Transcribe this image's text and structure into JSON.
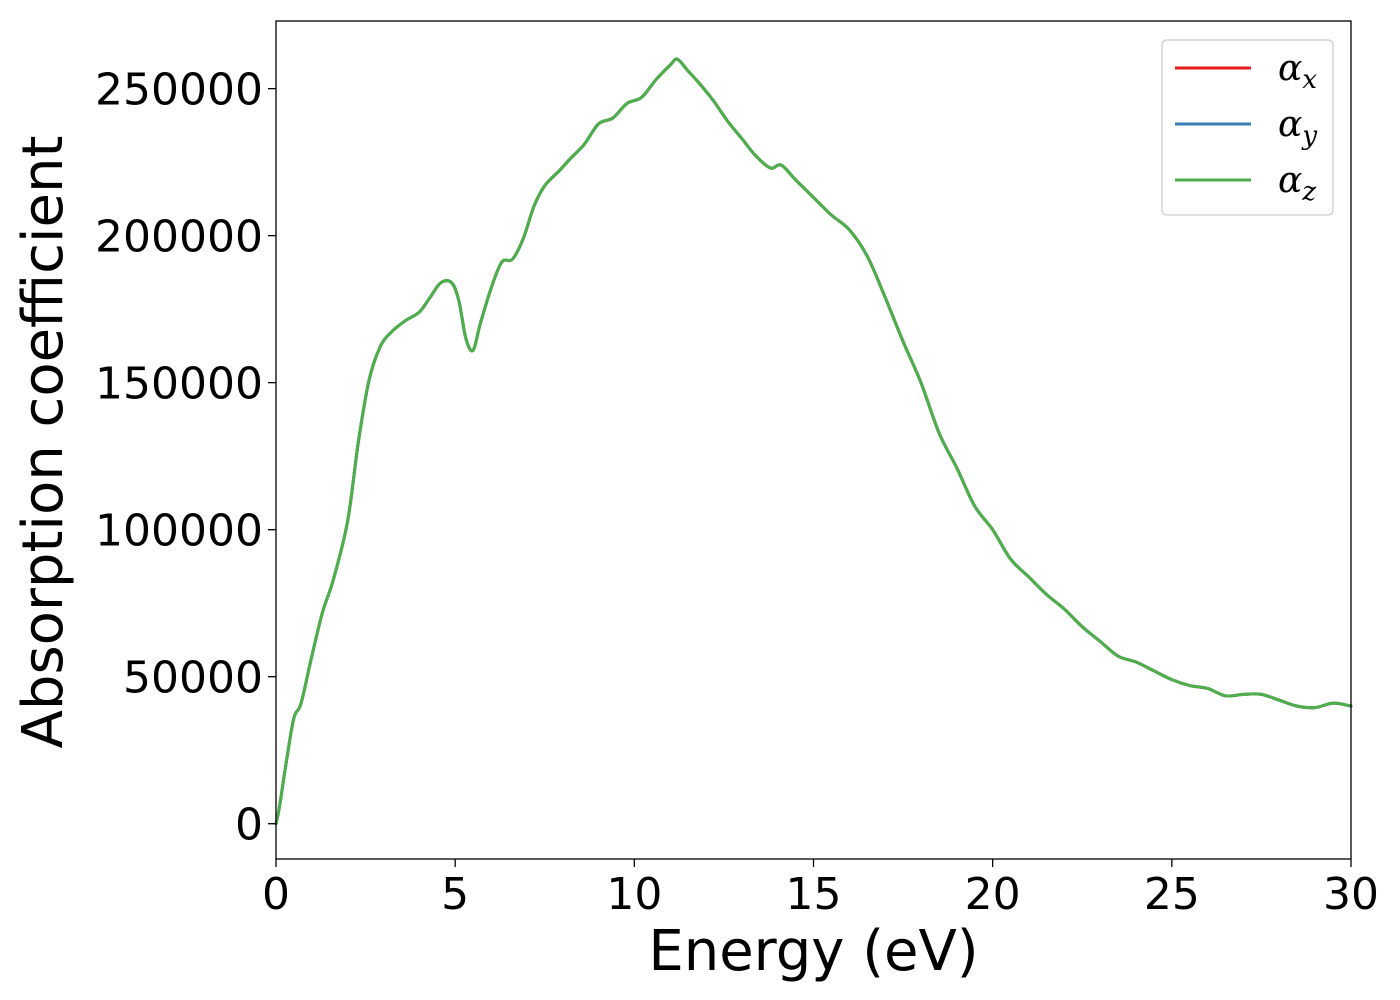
{
  "chart_data": {
    "type": "line",
    "xlabel": "Energy (eV)",
    "ylabel": "Absorption coefficient",
    "xlim": [
      0,
      30
    ],
    "ylim": [
      -12000,
      273000
    ],
    "xticks": [
      0,
      5,
      10,
      15,
      20,
      25,
      30
    ],
    "yticks": [
      0,
      50000,
      100000,
      150000,
      200000,
      250000
    ],
    "grid": false,
    "legend_position": "top-right",
    "x": [
      0,
      0.1,
      0.3,
      0.5,
      0.7,
      1.0,
      1.3,
      1.6,
      2.0,
      2.3,
      2.6,
      2.9,
      3.2,
      3.6,
      4.0,
      4.3,
      4.6,
      4.9,
      5.1,
      5.3,
      5.5,
      5.7,
      6.0,
      6.3,
      6.6,
      6.9,
      7.2,
      7.5,
      7.9,
      8.2,
      8.6,
      9.0,
      9.4,
      9.8,
      10.2,
      10.6,
      11.0,
      11.2,
      11.5,
      11.8,
      12.2,
      12.6,
      13.0,
      13.4,
      13.8,
      14.1,
      14.5,
      15.0,
      15.5,
      16.0,
      16.5,
      17.0,
      17.5,
      18.0,
      18.5,
      19.0,
      19.5,
      20.0,
      20.5,
      21.0,
      21.5,
      22.0,
      22.5,
      23.0,
      23.5,
      24.0,
      24.5,
      25.0,
      25.5,
      26.0,
      26.5,
      27.0,
      27.5,
      28.0,
      28.5,
      29.0,
      29.5,
      30.0
    ],
    "series": [
      {
        "name": "αx",
        "base": "α",
        "sub": "x",
        "color": "#e41a1c",
        "values": [
          0,
          6000,
          22000,
          36000,
          41000,
          57000,
          72000,
          83000,
          103000,
          130000,
          151000,
          162000,
          167000,
          171000,
          174000,
          179000,
          184000,
          184000,
          178000,
          165000,
          161000,
          170000,
          182000,
          191000,
          192000,
          199000,
          210000,
          217000,
          222000,
          226000,
          231000,
          238000,
          240000,
          245000,
          247000,
          253000,
          258000,
          260000,
          256000,
          252000,
          246000,
          239000,
          233000,
          227000,
          223000,
          224000,
          219000,
          213000,
          207000,
          202000,
          193000,
          179000,
          164000,
          150000,
          133000,
          121000,
          108000,
          100000,
          90000,
          84000,
          78000,
          73000,
          67000,
          62000,
          57000,
          55000,
          52000,
          49000,
          47000,
          46000,
          43500,
          44000,
          44000,
          42000,
          40000,
          39500,
          41000,
          40000
        ]
      },
      {
        "name": "αy",
        "base": "α",
        "sub": "y",
        "color": "#377eb8",
        "values": [
          0,
          6000,
          22000,
          36000,
          41000,
          57000,
          72000,
          83000,
          103000,
          130000,
          151000,
          162000,
          167000,
          171000,
          174000,
          179000,
          184000,
          184000,
          178000,
          165000,
          161000,
          170000,
          182000,
          191000,
          192000,
          199000,
          210000,
          217000,
          222000,
          226000,
          231000,
          238000,
          240000,
          245000,
          247000,
          253000,
          258000,
          260000,
          256000,
          252000,
          246000,
          239000,
          233000,
          227000,
          223000,
          224000,
          219000,
          213000,
          207000,
          202000,
          193000,
          179000,
          164000,
          150000,
          133000,
          121000,
          108000,
          100000,
          90000,
          84000,
          78000,
          73000,
          67000,
          62000,
          57000,
          55000,
          52000,
          49000,
          47000,
          46000,
          43500,
          44000,
          44000,
          42000,
          40000,
          39500,
          41000,
          40000
        ]
      },
      {
        "name": "αz",
        "base": "α",
        "sub": "z",
        "color": "#4daf4a",
        "values": [
          0,
          6000,
          22000,
          36000,
          41000,
          57000,
          72000,
          83000,
          103000,
          130000,
          151000,
          162000,
          167000,
          171000,
          174000,
          179000,
          184000,
          184000,
          178000,
          165000,
          161000,
          170000,
          182000,
          191000,
          192000,
          199000,
          210000,
          217000,
          222000,
          226000,
          231000,
          238000,
          240000,
          245000,
          247000,
          253000,
          258000,
          260000,
          256000,
          252000,
          246000,
          239000,
          233000,
          227000,
          223000,
          224000,
          219000,
          213000,
          207000,
          202000,
          193000,
          179000,
          164000,
          150000,
          133000,
          121000,
          108000,
          100000,
          90000,
          84000,
          78000,
          73000,
          67000,
          62000,
          57000,
          55000,
          52000,
          49000,
          47000,
          46000,
          43500,
          44000,
          44000,
          42000,
          40000,
          39500,
          41000,
          40000
        ]
      }
    ]
  }
}
